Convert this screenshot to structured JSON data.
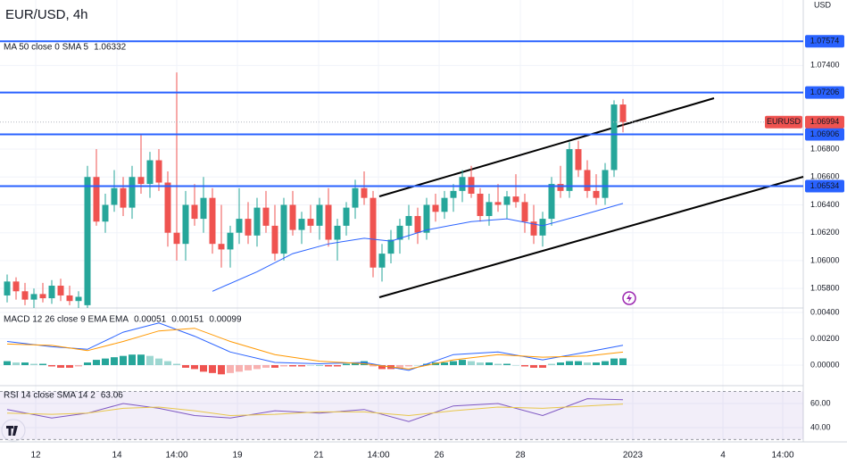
{
  "chart_data": [
    {
      "type": "candlestick",
      "title": "EUR/USD, 4h",
      "axis_unit": "USD",
      "xlim": [
        -0.8,
        89.2
      ],
      "xticks": [
        {
          "value": 3.2,
          "label": "12"
        },
        {
          "value": 12.3,
          "label": "14"
        },
        {
          "value": 19,
          "label": "14:00"
        },
        {
          "value": 25.8,
          "label": "19"
        },
        {
          "value": 34.9,
          "label": "21"
        },
        {
          "value": 41.6,
          "label": "14:00"
        },
        {
          "value": 48.4,
          "label": "26"
        },
        {
          "value": 57.5,
          "label": "28"
        },
        {
          "value": 70.1,
          "label": "2023"
        },
        {
          "value": 80.2,
          "label": "4"
        },
        {
          "value": 86.9,
          "label": "14:00"
        }
      ],
      "ylim": [
        1.0566,
        1.0787
      ],
      "yticks": [
        {
          "value": 1.058,
          "label": "1.05800"
        },
        {
          "value": 1.06,
          "label": "1.06000"
        },
        {
          "value": 1.062,
          "label": "1.06200"
        },
        {
          "value": 1.064,
          "label": "1.06400"
        },
        {
          "value": 1.066,
          "label": "1.06600"
        },
        {
          "value": 1.068,
          "label": "1.06800"
        },
        {
          "value": 1.074,
          "label": "1.07400"
        }
      ],
      "grid": true,
      "up_color": "#26a69a",
      "down_color": "#ef5350",
      "series": [
        {
          "name": "EURUSD",
          "open": [
            1.0575,
            1.0585,
            1.0578,
            1.0572,
            1.0576,
            1.0573,
            1.0582,
            1.0575,
            1.0571,
            1.0568,
            1.066,
            1.0628,
            1.064,
            1.0652,
            1.0638,
            1.066,
            1.0655,
            1.0672,
            1.0656,
            1.062,
            1.0612,
            1.064,
            1.063,
            1.0645,
            1.0612,
            1.0608,
            1.062,
            1.063,
            1.0618,
            1.0638,
            1.0625,
            1.0605,
            1.064,
            1.0622,
            1.063,
            1.0625,
            1.064,
            1.0615,
            1.0625,
            1.0638,
            1.0652,
            1.0645,
            1.0595,
            1.0605,
            1.0615,
            1.0625,
            1.0632,
            1.062,
            1.064,
            1.0635,
            1.0645,
            1.065,
            1.066,
            1.0648,
            1.0632,
            1.0642,
            1.064,
            1.0646,
            1.0642,
            1.0628,
            1.0618,
            1.063,
            1.0655,
            1.065,
            1.068,
            1.0665,
            1.065,
            1.0645,
            1.0665,
            1.0712
          ],
          "high": [
            1.059,
            1.0588,
            1.0584,
            1.058,
            1.0584,
            1.0586,
            1.0587,
            1.0582,
            1.0578,
            1.0668,
            1.068,
            1.0648,
            1.0665,
            1.066,
            1.0668,
            1.069,
            1.0678,
            1.068,
            1.0664,
            1.0735,
            1.065,
            1.0655,
            1.066,
            1.0652,
            1.064,
            1.0625,
            1.0652,
            1.0642,
            1.0645,
            1.065,
            1.064,
            1.0645,
            1.065,
            1.0635,
            1.064,
            1.0645,
            1.0652,
            1.063,
            1.0642,
            1.0658,
            1.0664,
            1.065,
            1.0612,
            1.0622,
            1.063,
            1.064,
            1.0638,
            1.0645,
            1.0648,
            1.065,
            1.0655,
            1.0665,
            1.0668,
            1.0652,
            1.0648,
            1.0655,
            1.065,
            1.0662,
            1.0648,
            1.064,
            1.0635,
            1.066,
            1.0668,
            1.0685,
            1.0686,
            1.0672,
            1.0662,
            1.067,
            1.0715,
            1.0716
          ],
          "low": [
            1.057,
            1.0572,
            1.0568,
            1.0566,
            1.057,
            1.0569,
            1.0571,
            1.0568,
            1.0566,
            1.0566,
            1.0625,
            1.062,
            1.0635,
            1.0632,
            1.063,
            1.0648,
            1.0645,
            1.065,
            1.061,
            1.06,
            1.06,
            1.0625,
            1.062,
            1.0605,
            1.0595,
            1.0595,
            1.0612,
            1.0612,
            1.061,
            1.062,
            1.06,
            1.06,
            1.0618,
            1.0612,
            1.062,
            1.0615,
            1.061,
            1.06,
            1.0618,
            1.063,
            1.064,
            1.0588,
            1.0585,
            1.0598,
            1.0605,
            1.0615,
            1.0612,
            1.0615,
            1.0628,
            1.063,
            1.0635,
            1.0642,
            1.0645,
            1.0628,
            1.0625,
            1.0635,
            1.063,
            1.0638,
            1.062,
            1.0612,
            1.061,
            1.0625,
            1.0645,
            1.0645,
            1.066,
            1.0645,
            1.064,
            1.064,
            1.066,
            1.0692
          ],
          "close": [
            1.0585,
            1.0578,
            1.0572,
            1.0576,
            1.0573,
            1.0582,
            1.0575,
            1.0571,
            1.0574,
            1.066,
            1.0628,
            1.064,
            1.0652,
            1.0638,
            1.066,
            1.0655,
            1.0672,
            1.0656,
            1.062,
            1.0612,
            1.064,
            1.063,
            1.0645,
            1.0612,
            1.0608,
            1.062,
            1.063,
            1.0618,
            1.0638,
            1.0625,
            1.0605,
            1.064,
            1.0622,
            1.063,
            1.0625,
            1.064,
            1.0615,
            1.0625,
            1.0638,
            1.0652,
            1.0645,
            1.0595,
            1.0605,
            1.0615,
            1.0625,
            1.0632,
            1.062,
            1.064,
            1.0635,
            1.0645,
            1.065,
            1.066,
            1.0648,
            1.0632,
            1.0642,
            1.064,
            1.0646,
            1.0642,
            1.0628,
            1.0618,
            1.063,
            1.0655,
            1.065,
            1.068,
            1.0665,
            1.065,
            1.0645,
            1.0665,
            1.0712,
            1.06994
          ]
        }
      ],
      "last_value": 1.06994,
      "hlines": [
        1.07574,
        1.07206,
        1.06906,
        1.06534
      ],
      "hline_color": "#2962ff",
      "indicator": {
        "label": "MA 50 close 0 SMA 5",
        "value": 1.06332,
        "color": "#2962ff",
        "x": [
          23,
          28,
          32,
          36,
          40,
          43,
          47,
          52,
          56,
          60,
          64,
          69
        ],
        "values": [
          1.0578,
          1.0592,
          1.0605,
          1.0612,
          1.0616,
          1.0614,
          1.0622,
          1.0628,
          1.063,
          1.0625,
          1.0632,
          1.0641
        ]
      }
    },
    {
      "type": "macd",
      "label": "MACD 12 26 close 9 EMA EMA",
      "ylim": [
        -0.00156,
        0.00434
      ],
      "yticks": [
        {
          "value": 0,
          "label": "0.00000"
        },
        {
          "value": 0.002,
          "label": "0.00200"
        },
        {
          "value": 0.004,
          "label": "0.00400"
        }
      ],
      "histogram": {
        "value": 0.00051,
        "color": "#26a69a",
        "negative_color": "#ef5350",
        "values": [
          0.0003,
          0.0002,
          0.0002,
          0.0001,
          0.0001,
          -0.0001,
          -0.0002,
          -0.0002,
          -0.0001,
          0.0002,
          0.0004,
          0.0005,
          0.0006,
          0.0007,
          0.0008,
          0.0008,
          0.0007,
          0.0005,
          0.0003,
          0.0001,
          -0.0002,
          -0.0003,
          -0.0005,
          -0.0006,
          -0.0007,
          -0.0006,
          -0.0005,
          -0.0004,
          -0.0003,
          -0.0002,
          -0.0002,
          -0.0001,
          -0.0001,
          -0.0001,
          0,
          0,
          -0.0001,
          -0.0001,
          0.0001,
          0.0002,
          0.0003,
          -0.0001,
          -0.0003,
          -0.0003,
          -0.0002,
          -0.0001,
          0,
          0.0001,
          0.0002,
          0.0002,
          0.0003,
          0.0004,
          0.0003,
          0.0002,
          0.0002,
          0.0001,
          0.0001,
          0,
          -0.0001,
          -0.0002,
          -0.0002,
          0.0001,
          0.0002,
          0.0003,
          0.0003,
          0.0002,
          0.0002,
          0.0003,
          0.0005,
          0.00051
        ]
      },
      "series": [
        {
          "value": 0.00151,
          "color": "#2962ff",
          "x": [
            0,
            5,
            9,
            13,
            17,
            21,
            25,
            30,
            35,
            40,
            45,
            50,
            55,
            60,
            65,
            69
          ],
          "values": [
            0.0018,
            0.0014,
            0.0012,
            0.0025,
            0.0032,
            0.0022,
            0.001,
            0.0002,
            0.0001,
            0.0002,
            -0.0004,
            0.0008,
            0.001,
            0.0004,
            0.001,
            0.00151
          ]
        },
        {
          "value": 0.00099,
          "color": "#ff9800",
          "x": [
            0,
            5,
            9,
            13,
            17,
            21,
            25,
            30,
            35,
            40,
            45,
            50,
            55,
            60,
            65,
            69
          ],
          "values": [
            0.0016,
            0.0015,
            0.0011,
            0.0018,
            0.0026,
            0.0028,
            0.0018,
            0.0008,
            0.0003,
            0.0001,
            -0.0003,
            0.0004,
            0.0008,
            0.0006,
            0.0007,
            0.00099
          ]
        }
      ]
    },
    {
      "type": "rsi",
      "label": "RSI 14 close SMA 14 2",
      "ylim": [
        28.1,
        74.8
      ],
      "yticks": [
        {
          "value": 40,
          "label": "40.00"
        },
        {
          "value": 60,
          "label": "60.00"
        }
      ],
      "band": [
        30,
        70
      ],
      "series": [
        {
          "value": 63.06,
          "color": "#7e57c2",
          "x": [
            0,
            5,
            9,
            13,
            17,
            21,
            25,
            30,
            35,
            40,
            45,
            50,
            55,
            60,
            65,
            69
          ],
          "values": [
            55,
            48,
            52,
            60,
            56,
            50,
            48,
            54,
            52,
            55,
            45,
            58,
            60,
            50,
            64,
            63.06
          ]
        },
        {
          "color": "#e8c64a",
          "x": [
            0,
            5,
            9,
            13,
            17,
            21,
            25,
            30,
            35,
            40,
            45,
            50,
            55,
            60,
            65,
            69
          ],
          "values": [
            52,
            51,
            52,
            56,
            57,
            54,
            50,
            51,
            53,
            53,
            50,
            54,
            57,
            56,
            58,
            59.5
          ]
        }
      ]
    }
  ]
}
